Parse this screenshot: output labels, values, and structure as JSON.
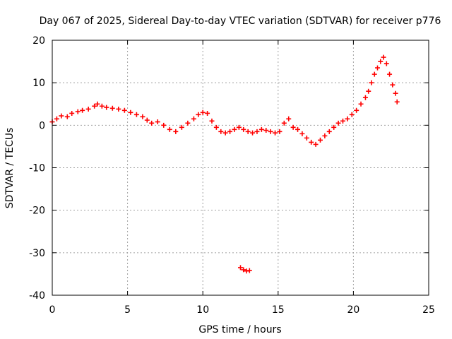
{
  "chart_data": {
    "type": "scatter",
    "title": "Day 067 of 2025, Sidereal Day-to-day VTEC variation (SDTVAR) for receiver p776",
    "xlabel": "GPS time / hours",
    "ylabel": "SDTVAR / TECUs",
    "xlim": [
      0,
      25
    ],
    "ylim": [
      -40,
      20
    ],
    "x_ticks": [
      0,
      5,
      10,
      15,
      20,
      25
    ],
    "y_ticks": [
      -40,
      -30,
      -20,
      -10,
      0,
      10,
      20
    ],
    "x_tick_labels": [
      "0",
      "5",
      "10",
      "15",
      "20",
      "25"
    ],
    "y_tick_labels": [
      "-40",
      "-30",
      "-20",
      "-10",
      "0",
      "10",
      "20"
    ],
    "grid": true,
    "marker": "+",
    "color": "#ff0000",
    "series": [
      {
        "name": "SDTVAR",
        "x": [
          0.0,
          0.3,
          0.6,
          1.0,
          1.3,
          1.7,
          2.0,
          2.4,
          2.8,
          3.0,
          3.3,
          3.6,
          4.0,
          4.4,
          4.8,
          5.2,
          5.6,
          6.0,
          6.3,
          6.6,
          7.0,
          7.4,
          7.8,
          8.2,
          8.6,
          9.0,
          9.4,
          9.7,
          10.0,
          10.3,
          10.6,
          10.9,
          11.2,
          11.5,
          11.8,
          12.1,
          12.4,
          12.7,
          13.0,
          13.3,
          13.6,
          13.9,
          14.2,
          14.5,
          14.8,
          15.1,
          15.4,
          15.7,
          16.0,
          16.3,
          16.6,
          16.9,
          17.2,
          17.5,
          17.8,
          18.1,
          18.4,
          18.7,
          19.0,
          19.3,
          19.6,
          19.9,
          20.2,
          20.5,
          20.8,
          21.0,
          21.2,
          21.4,
          21.6,
          21.8,
          22.0,
          22.2,
          22.4,
          22.6,
          22.8,
          22.9,
          12.5,
          12.7,
          12.9,
          13.1
        ],
        "y": [
          0.8,
          1.5,
          2.2,
          2.0,
          2.8,
          3.2,
          3.5,
          3.8,
          4.5,
          5.0,
          4.5,
          4.2,
          4.0,
          3.8,
          3.5,
          3.0,
          2.5,
          2.0,
          1.2,
          0.5,
          0.8,
          0.0,
          -1.0,
          -1.5,
          -0.5,
          0.5,
          1.5,
          2.5,
          3.0,
          2.8,
          1.0,
          -0.5,
          -1.5,
          -1.8,
          -1.5,
          -1.0,
          -0.5,
          -1.0,
          -1.5,
          -1.8,
          -1.5,
          -1.0,
          -1.2,
          -1.5,
          -1.8,
          -1.5,
          0.5,
          1.5,
          -0.5,
          -1.0,
          -2.0,
          -3.0,
          -4.0,
          -4.5,
          -3.5,
          -2.5,
          -1.5,
          -0.5,
          0.5,
          1.0,
          1.5,
          2.5,
          3.5,
          5.0,
          6.5,
          8.0,
          10.0,
          12.0,
          13.5,
          15.0,
          16.0,
          14.5,
          12.0,
          9.5,
          7.5,
          5.5,
          -33.5,
          -34.0,
          -34.3,
          -34.2
        ]
      }
    ]
  }
}
